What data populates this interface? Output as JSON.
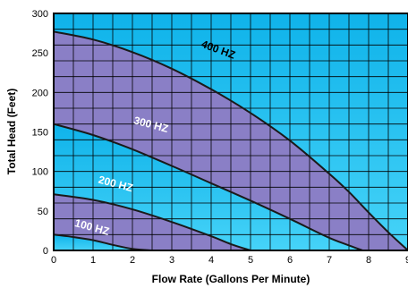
{
  "chart_data": {
    "type": "area",
    "title": "",
    "xlabel": "Flow Rate (Gallons Per Minute)",
    "ylabel": "Total Head (Feet)",
    "xlim": [
      0,
      9
    ],
    "ylim": [
      0,
      300
    ],
    "x_ticks": [
      "0",
      "1",
      "2",
      "3",
      "4",
      "5",
      "6",
      "7",
      "8",
      "9"
    ],
    "y_ticks": [
      "0",
      "50",
      "100",
      "150",
      "200",
      "250",
      "300"
    ],
    "grid": true,
    "legend": "none",
    "colors": {
      "band_purple": "#8a7fc6",
      "band_cyan_top": "#0fb3ea",
      "band_cyan_bottom": "#46d3f8",
      "curve": "#1a1a1a",
      "grid": "#000000"
    },
    "series": [
      {
        "name": "400 HZ",
        "x": [
          0,
          1,
          2,
          3,
          4,
          5,
          6,
          7,
          7.5,
          8,
          8.5,
          9
        ],
        "y": [
          277,
          267,
          251,
          230,
          204,
          174,
          139,
          97,
          74,
          48,
          23,
          0
        ]
      },
      {
        "name": "300 HZ",
        "x": [
          0,
          1,
          2,
          3,
          4,
          5,
          6,
          7,
          7.85
        ],
        "y": [
          160,
          146,
          128,
          107,
          85,
          63,
          40,
          16,
          0
        ]
      },
      {
        "name": "200 HZ",
        "x": [
          0,
          1,
          2,
          3,
          4,
          4.5,
          5
        ],
        "y": [
          71,
          64,
          52,
          36,
          18,
          8,
          0
        ]
      },
      {
        "name": "100 HZ",
        "x": [
          0,
          0.5,
          1,
          1.5,
          2,
          2.5
        ],
        "y": [
          20,
          17,
          13,
          7,
          2,
          0
        ]
      }
    ],
    "curve_labels": [
      {
        "text": "400 HZ",
        "x": 4.15,
        "y": 250,
        "angle": 20,
        "color": "#000000"
      },
      {
        "text": "300 HZ",
        "x": 2.45,
        "y": 155,
        "angle": 15,
        "color": "#ffffff"
      },
      {
        "text": "200 HZ",
        "x": 1.55,
        "y": 80,
        "angle": 15,
        "color": "#ffffff"
      },
      {
        "text": "100 HZ",
        "x": 0.95,
        "y": 25,
        "angle": 15,
        "color": "#ffffff"
      }
    ]
  }
}
